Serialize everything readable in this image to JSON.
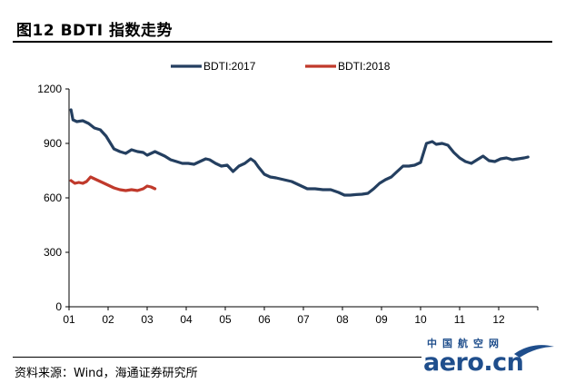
{
  "title": "图12 BDTI 指数走势",
  "source": "资料来源：Wind，海通证券研究所",
  "logo": {
    "cn": "中国航空网",
    "en": "aero.cn",
    "color": "#1f4e8c"
  },
  "chart_data": {
    "type": "line",
    "title": "",
    "xlabel": "",
    "ylabel": "",
    "ylim": [
      0,
      1200
    ],
    "yticks": [
      "0",
      "300",
      "600",
      "900",
      "1200"
    ],
    "xticks": [
      "01",
      "02",
      "03",
      "04",
      "05",
      "06",
      "07",
      "08",
      "09",
      "10",
      "11",
      "12"
    ],
    "xlim": [
      1,
      13
    ],
    "legend_position": "top",
    "grid": false,
    "series": [
      {
        "name": "BDTI:2017",
        "color": "#243F60",
        "x": [
          1.05,
          1.1,
          1.2,
          1.35,
          1.5,
          1.65,
          1.8,
          1.95,
          2.05,
          2.15,
          2.3,
          2.45,
          2.6,
          2.75,
          2.9,
          3.0,
          3.1,
          3.2,
          3.3,
          3.45,
          3.6,
          3.75,
          3.9,
          4.05,
          4.2,
          4.35,
          4.5,
          4.6,
          4.75,
          4.9,
          5.05,
          5.2,
          5.35,
          5.5,
          5.65,
          5.75,
          5.85,
          6.0,
          6.15,
          6.3,
          6.5,
          6.7,
          6.9,
          7.1,
          7.3,
          7.5,
          7.7,
          7.9,
          8.05,
          8.2,
          8.35,
          8.5,
          8.65,
          8.8,
          8.95,
          9.1,
          9.25,
          9.4,
          9.55,
          9.7,
          9.85,
          10.0,
          10.15,
          10.3,
          10.4,
          10.55,
          10.7,
          10.85,
          11.0,
          11.15,
          11.3,
          11.45,
          11.6,
          11.75,
          11.9,
          12.05,
          12.2,
          12.35,
          12.5,
          12.65,
          12.75
        ],
        "values": [
          1085,
          1030,
          1020,
          1025,
          1010,
          985,
          975,
          940,
          905,
          870,
          855,
          845,
          865,
          855,
          850,
          835,
          845,
          855,
          845,
          830,
          810,
          800,
          790,
          790,
          785,
          800,
          815,
          810,
          790,
          775,
          780,
          745,
          775,
          790,
          815,
          800,
          770,
          730,
          715,
          710,
          700,
          690,
          670,
          650,
          650,
          645,
          645,
          630,
          615,
          615,
          618,
          620,
          625,
          650,
          680,
          700,
          715,
          745,
          775,
          775,
          780,
          795,
          900,
          910,
          895,
          900,
          890,
          850,
          820,
          800,
          790,
          810,
          830,
          805,
          800,
          815,
          820,
          810,
          815,
          820,
          825
        ]
      },
      {
        "name": "BDTI:2018",
        "color": "#C0392B",
        "x": [
          1.05,
          1.15,
          1.25,
          1.35,
          1.45,
          1.55,
          1.7,
          1.85,
          2.0,
          2.15,
          2.3,
          2.45,
          2.6,
          2.75,
          2.9,
          3.0,
          3.1,
          3.2
        ],
        "values": [
          695,
          680,
          685,
          680,
          690,
          715,
          700,
          685,
          670,
          655,
          645,
          640,
          645,
          640,
          650,
          665,
          660,
          650
        ]
      }
    ]
  }
}
